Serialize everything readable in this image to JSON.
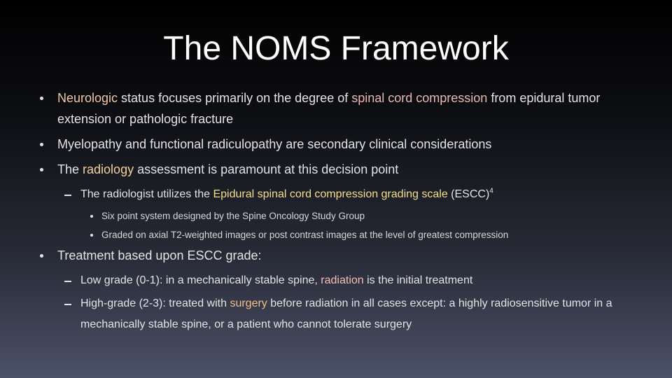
{
  "slide": {
    "title": "The NOMS Framework",
    "items": [
      {
        "runs": [
          {
            "text": "Neurologic",
            "color": "#f0c8a6"
          },
          {
            "text": " status focuses primarily on the degree of ",
            "color": "#e4e4e4"
          },
          {
            "text": "spinal cord compression",
            "color": "#e8b9b0"
          },
          {
            "text": " from epidural tumor extension or pathologic fracture",
            "color": "#e4e4e4"
          }
        ]
      },
      {
        "runs": [
          {
            "text": "Myelopathy and functional radiculopathy are secondary clinical considerations",
            "color": "#e4e4e4"
          }
        ]
      },
      {
        "runs": [
          {
            "text": "The ",
            "color": "#e4e4e4"
          },
          {
            "text": "radiology",
            "color": "#f3d29a"
          },
          {
            "text": " assessment is paramount at this decision point",
            "color": "#e4e4e4"
          }
        ],
        "children": [
          {
            "runs": [
              {
                "text": "The radiologist utilizes the ",
                "color": "#e4e4e4"
              },
              {
                "text": "Epidural spinal cord compression grading scale",
                "color": "#f5df8a"
              },
              {
                "text": " (ESCC)",
                "color": "#e4e4e4"
              },
              {
                "text": "4",
                "color": "#e4e4e4",
                "superscript": true
              }
            ],
            "children": [
              {
                "runs": [
                  {
                    "text": "Six point system designed by the Spine Oncology Study Group",
                    "color": "#d8d8d8"
                  }
                ]
              },
              {
                "runs": [
                  {
                    "text": "Graded on axial T2-weighted images or  post contrast images at the level of greatest compression",
                    "color": "#d8d8d8"
                  }
                ]
              }
            ]
          }
        ]
      },
      {
        "runs": [
          {
            "text": "Treatment based upon ESCC grade:",
            "color": "#e4e4e4"
          }
        ],
        "children": [
          {
            "runs": [
              {
                "text": "Low grade (0-1): in a mechanically stable spine, ",
                "color": "#e4e4e4"
              },
              {
                "text": "radiation",
                "color": "#f0c0b4"
              },
              {
                "text": " is the initial treatment",
                "color": "#e4e4e4"
              }
            ]
          },
          {
            "runs": [
              {
                "text": "High-grade (2-3): treated with ",
                "color": "#e4e4e4"
              },
              {
                "text": "surgery",
                "color": "#f2c08c"
              },
              {
                "text": " before radiation in all cases except: a highly radiosensitive tumor in a mechanically stable spine, or a patient who cannot tolerate surgery",
                "color": "#e4e4e4"
              }
            ]
          }
        ]
      }
    ]
  }
}
